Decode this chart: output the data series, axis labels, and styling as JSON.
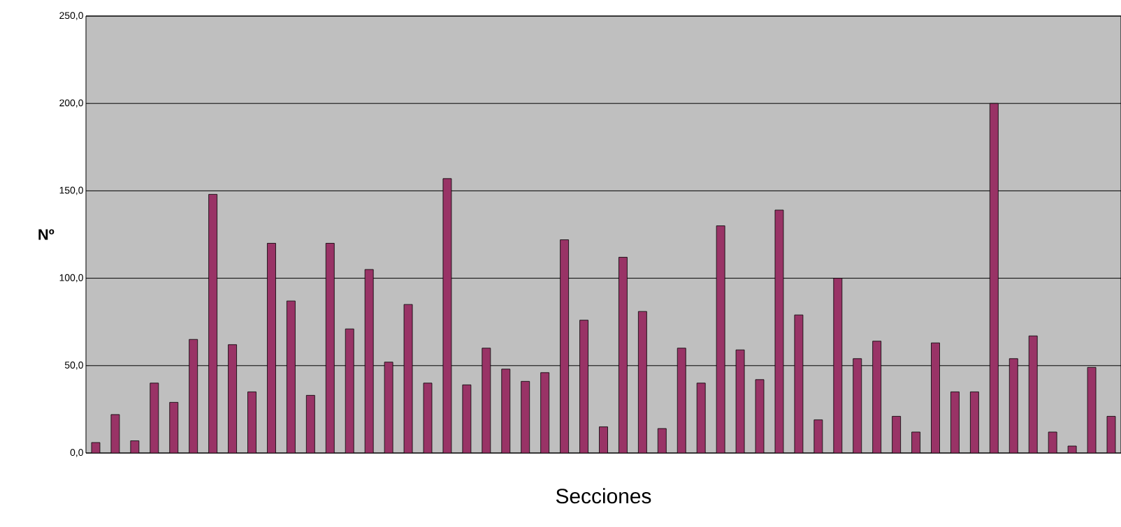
{
  "chart_data": {
    "type": "bar",
    "xlabel": "Secciones",
    "ylabel": "Nº",
    "categories": [
      null,
      null,
      null,
      null,
      null,
      null,
      null,
      null,
      null,
      null,
      null,
      null,
      null,
      null,
      null,
      null,
      null,
      null,
      null,
      null,
      null,
      null,
      null,
      null,
      null,
      null,
      null,
      null,
      null,
      null,
      null,
      null,
      null,
      null,
      null,
      null,
      null,
      null,
      null,
      null,
      null,
      null,
      null,
      null,
      null,
      null,
      null,
      null,
      null,
      null,
      null,
      null,
      null
    ],
    "values": [
      6,
      22,
      7,
      40,
      29,
      65,
      148,
      62,
      35,
      120,
      87,
      33,
      120,
      71,
      105,
      52,
      85,
      40,
      157,
      39,
      60,
      48,
      41,
      46,
      122,
      76,
      15,
      112,
      81,
      14,
      60,
      40,
      130,
      59,
      42,
      139,
      79,
      19,
      100,
      54,
      64,
      21,
      12,
      63,
      35,
      35,
      200,
      54,
      67,
      12,
      4,
      49,
      21
    ],
    "color": "#993366",
    "ylim": [
      0,
      250
    ],
    "yticks": [
      {
        "value": 0,
        "label": "0,0"
      },
      {
        "value": 50,
        "label": "50,0"
      },
      {
        "value": 100,
        "label": "100,0"
      },
      {
        "value": 150,
        "label": "150,0"
      },
      {
        "value": 200,
        "label": "200,0"
      },
      {
        "value": 250,
        "label": "250,0"
      }
    ],
    "grid": "y"
  }
}
